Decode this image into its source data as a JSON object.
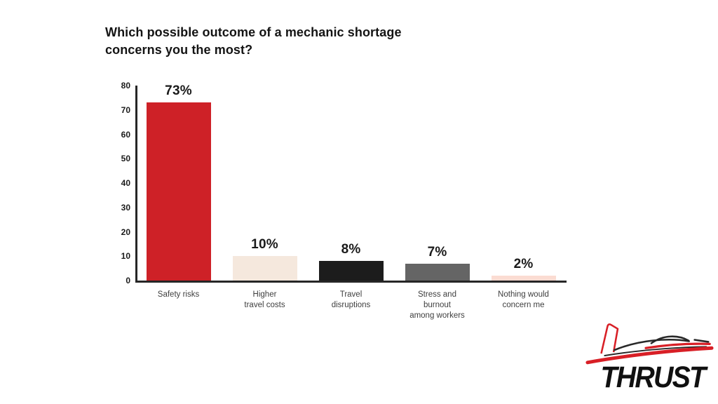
{
  "chart_data": {
    "type": "bar",
    "title": "Which possible outcome of a mechanic shortage concerns you the most?",
    "categories": [
      "Safety risks",
      "Higher\ntravel costs",
      "Travel\ndisruptions",
      "Stress and\nburnout\namong workers",
      "Nothing would\nconcern me"
    ],
    "values": [
      73,
      10,
      8,
      7,
      2
    ],
    "value_labels": [
      "73%",
      "10%",
      "8%",
      "7%",
      "2%"
    ],
    "bar_colors": [
      "#ce2127",
      "#f5e8dd",
      "#1c1c1c",
      "#656565",
      "#fbdcd2"
    ],
    "xlabel": "",
    "ylabel": "",
    "ylim": [
      0,
      80
    ],
    "yticks": [
      0,
      10,
      20,
      30,
      40,
      50,
      60,
      70,
      80
    ],
    "grid": false,
    "legend_position": "none",
    "axis_color": "#262626"
  },
  "logo": {
    "text": "THRUST",
    "accent_color": "#d81f26",
    "text_color": "#101010",
    "icon": "airplane-icon"
  }
}
